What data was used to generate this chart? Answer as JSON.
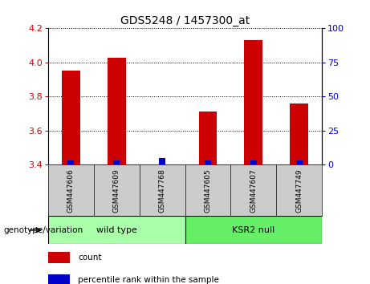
{
  "title": "GDS5248 / 1457300_at",
  "samples": [
    "GSM447606",
    "GSM447609",
    "GSM447768",
    "GSM447605",
    "GSM447607",
    "GSM447749"
  ],
  "count_values": [
    3.95,
    4.03,
    3.4,
    3.71,
    4.13,
    3.76
  ],
  "percentile_raw": [
    3,
    3,
    5,
    3,
    3,
    3
  ],
  "ylim_left": [
    3.4,
    4.2
  ],
  "yticks_left": [
    3.4,
    3.6,
    3.8,
    4.0,
    4.2
  ],
  "ylim_right": [
    0,
    100
  ],
  "yticks_right": [
    0,
    25,
    50,
    75,
    100
  ],
  "bar_color_red": "#cc0000",
  "bar_color_blue": "#0000cc",
  "groups": [
    {
      "label": "wild type",
      "n": 3,
      "color": "#aaffaa"
    },
    {
      "label": "KSR2 null",
      "n": 3,
      "color": "#66ee66"
    }
  ],
  "legend_items": [
    {
      "label": "count",
      "color": "#cc0000"
    },
    {
      "label": "percentile rank within the sample",
      "color": "#0000cc"
    }
  ],
  "genotype_label": "genotype/variation",
  "background_color": "#ffffff",
  "sample_area_color": "#cccccc",
  "tick_color_left": "#cc0000",
  "tick_color_right": "#0000cc",
  "bar_width": 0.4
}
